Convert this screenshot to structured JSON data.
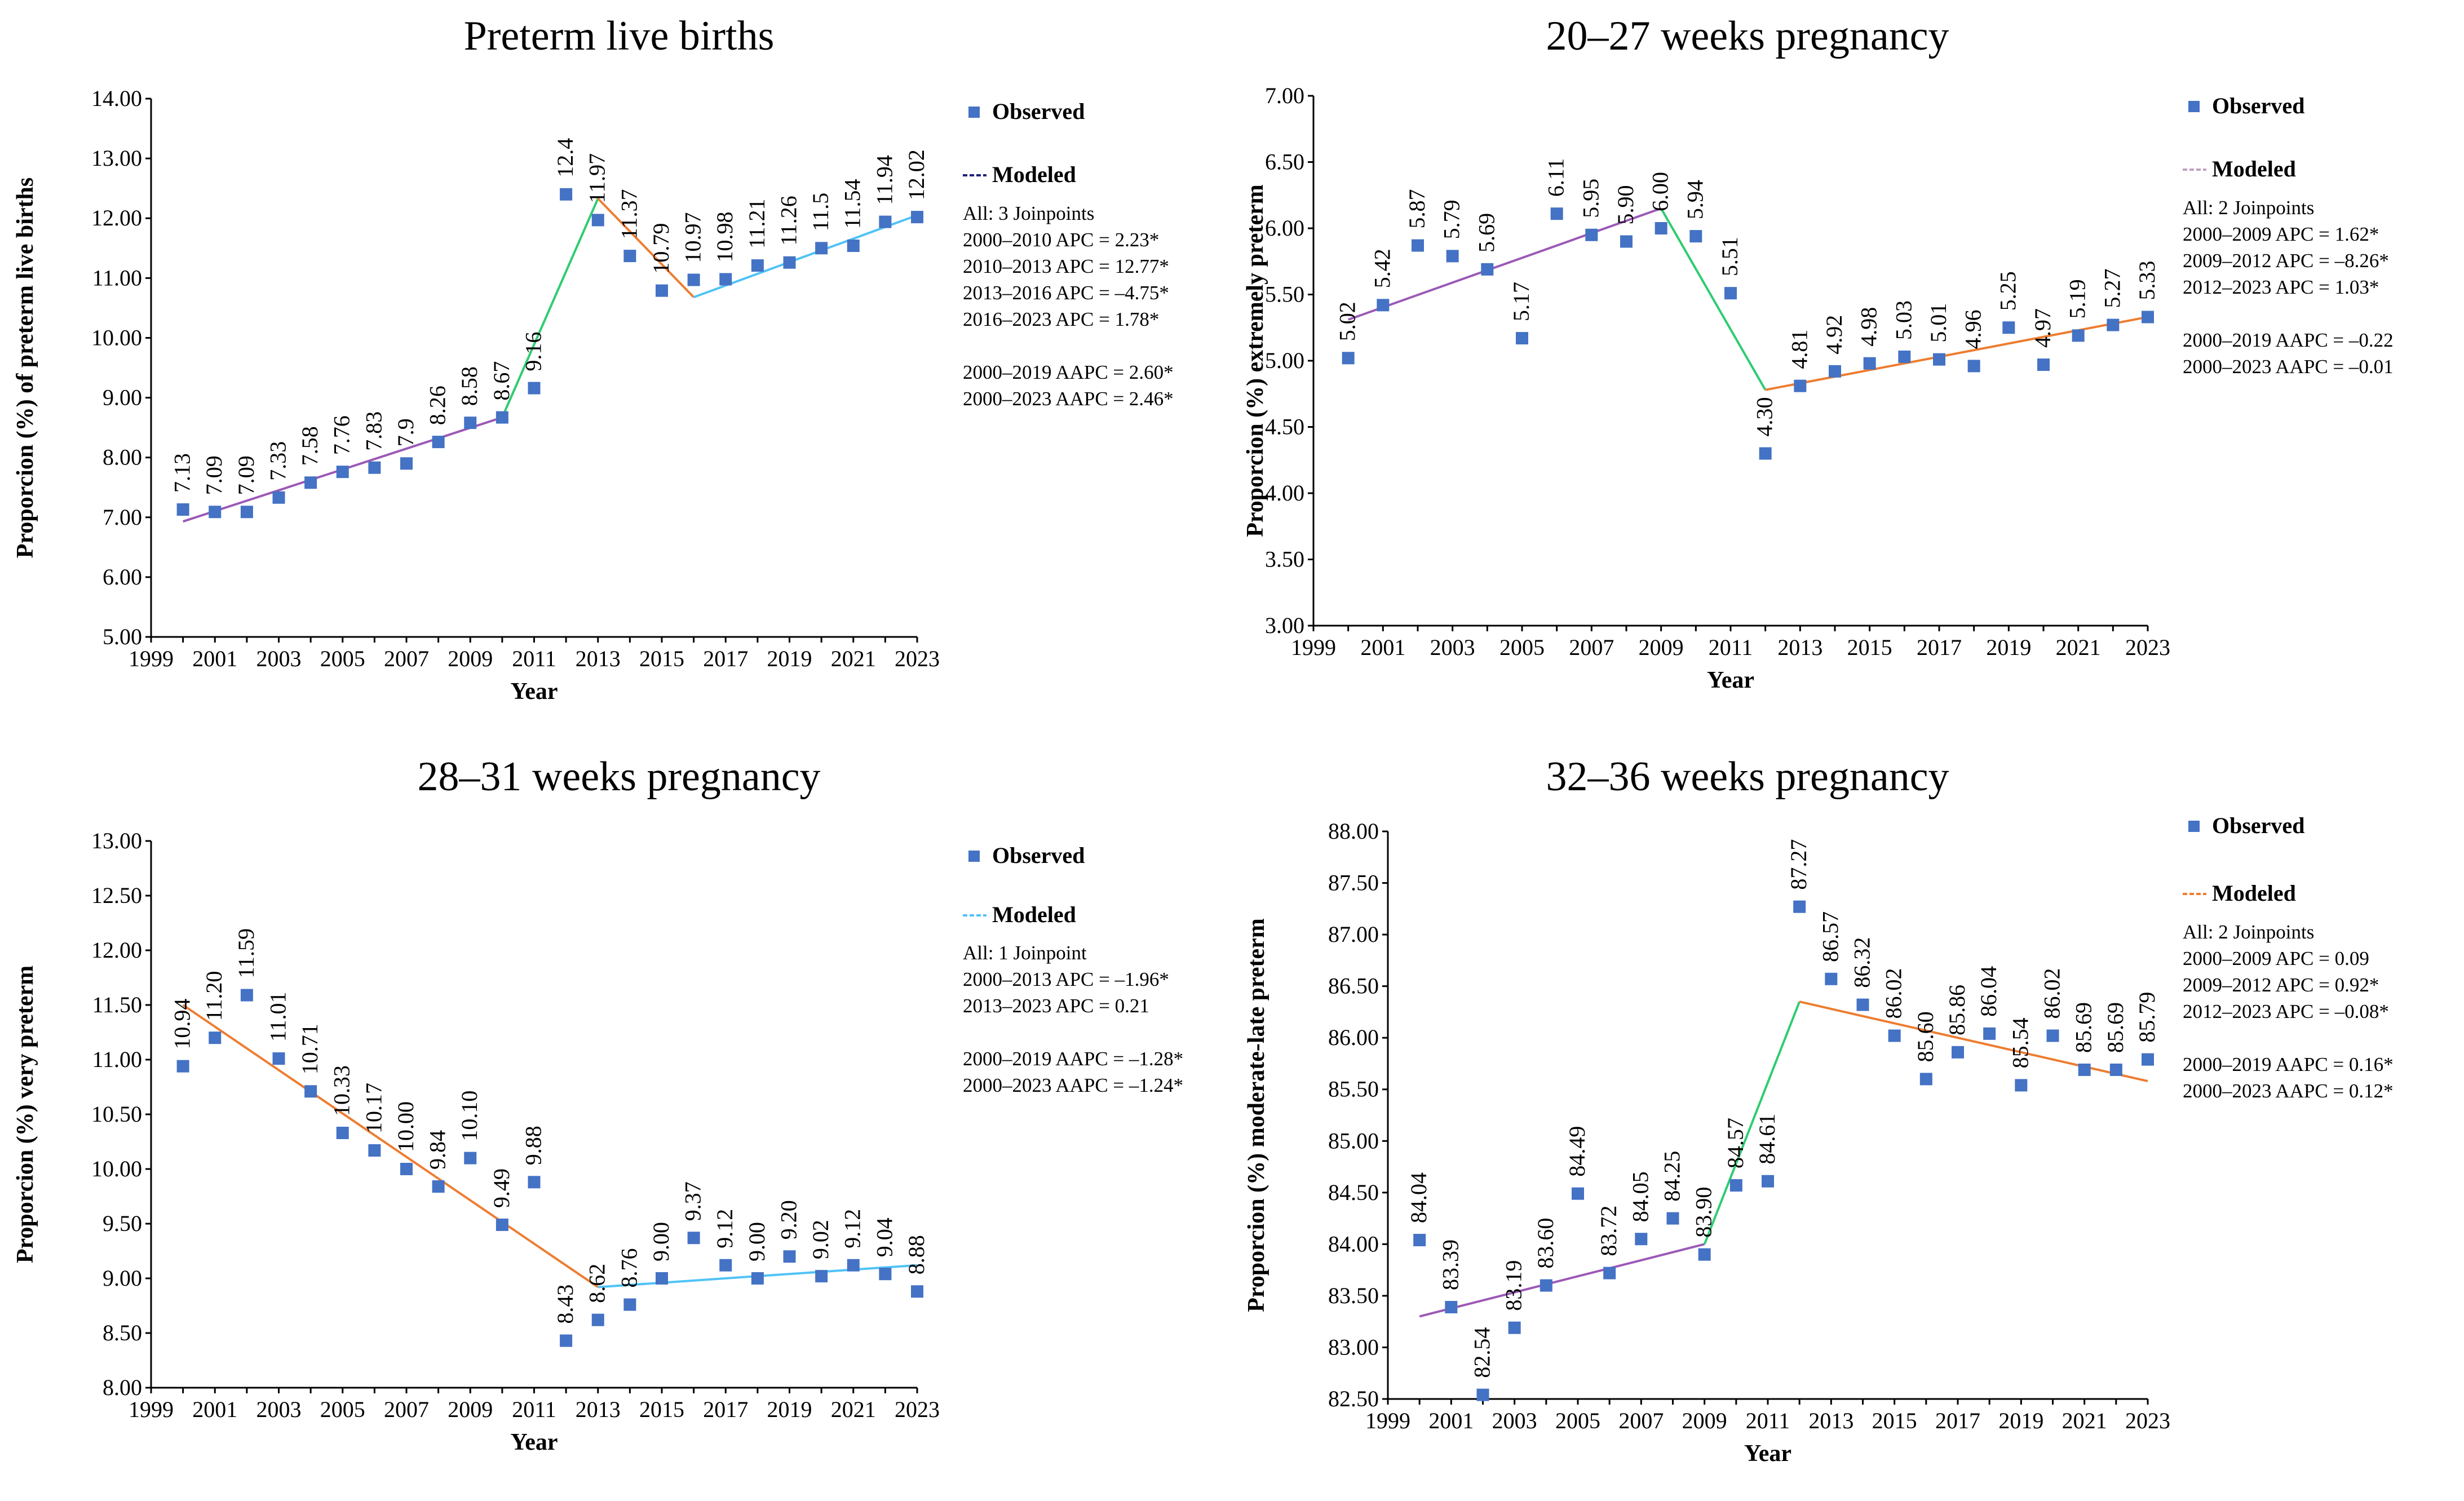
{
  "chart_data": [
    {
      "type": "scatter",
      "title": "Preterm live births",
      "xlabel": "Year",
      "ylabel": "Proporcion (%) of preterm live births",
      "xlim": [
        1999,
        2023
      ],
      "ylim": [
        5.0,
        14.0
      ],
      "x_ticks": [
        "1999",
        "2001",
        "2003",
        "2005",
        "2007",
        "2009",
        "2011",
        "2013",
        "2015",
        "2017",
        "2019",
        "2021",
        "2023"
      ],
      "y_ticks": [
        "5.00",
        "6.00",
        "7.00",
        "8.00",
        "9.00",
        "10.00",
        "11.00",
        "12.00",
        "13.00",
        "14.00"
      ],
      "observed": {
        "years": [
          2000,
          2001,
          2002,
          2003,
          2004,
          2005,
          2006,
          2007,
          2008,
          2009,
          2010,
          2011,
          2012,
          2013,
          2014,
          2015,
          2016,
          2017,
          2018,
          2019,
          2020,
          2021,
          2022,
          2023
        ],
        "values": [
          7.13,
          7.09,
          7.09,
          7.33,
          7.58,
          7.76,
          7.83,
          7.9,
          8.26,
          8.58,
          8.67,
          9.16,
          12.4,
          11.97,
          11.37,
          10.79,
          10.97,
          10.98,
          11.21,
          11.26,
          11.5,
          11.54,
          11.94,
          12.02
        ],
        "labels": [
          "7.13",
          "7.09",
          "7.09",
          "7.33",
          "7.58",
          "7.76",
          "7.83",
          "7.9",
          "8.26",
          "8.58",
          "8.67",
          "9.16",
          "12.4",
          "11.97",
          "11.37",
          "10.79",
          "10.97",
          "10.98",
          "11.21",
          "11.26",
          "11.5",
          "11.54",
          "11.94",
          "12.02"
        ]
      },
      "modeled": [
        {
          "x": [
            2000,
            2010
          ],
          "y": [
            6.93,
            8.67
          ],
          "color": "#9B59B6"
        },
        {
          "x": [
            2010,
            2013
          ],
          "y": [
            8.67,
            12.33
          ],
          "color": "#2ECC71"
        },
        {
          "x": [
            2013,
            2016
          ],
          "y": [
            12.33,
            10.68
          ],
          "color": "#ED7D31"
        },
        {
          "x": [
            2016,
            2023
          ],
          "y": [
            10.68,
            12.05
          ],
          "color": "#4FC3F7"
        }
      ],
      "legend": {
        "observed": "Observed",
        "modeled": "Modeled",
        "modeled_color": "#1F1F7A"
      },
      "annotations": [
        "All: 3 Joinpoints",
        "2000–2010 APC = 2.23*",
        "2010–2013 APC = 12.77*",
        "2013–2016 APC = –4.75*",
        "2016–2023 APC = 1.78*",
        "",
        "2000–2019 AAPC = 2.60*",
        "2000–2023 AAPC = 2.46*"
      ]
    },
    {
      "type": "scatter",
      "title": "20–27 weeks pregnancy",
      "xlabel": "Year",
      "ylabel": "Proporcion (%) extremely preterm",
      "xlim": [
        1999,
        2023
      ],
      "ylim": [
        3.0,
        7.0
      ],
      "x_ticks": [
        "1999",
        "2001",
        "2003",
        "2005",
        "2007",
        "2009",
        "2011",
        "2013",
        "2015",
        "2017",
        "2019",
        "2021",
        "2023"
      ],
      "y_ticks": [
        "3.00",
        "3.50",
        "4.00",
        "4.50",
        "5.00",
        "5.50",
        "6.00",
        "6.50",
        "7.00"
      ],
      "observed": {
        "years": [
          2000,
          2001,
          2002,
          2003,
          2004,
          2005,
          2006,
          2007,
          2008,
          2009,
          2010,
          2011,
          2012,
          2013,
          2014,
          2015,
          2016,
          2017,
          2018,
          2019,
          2020,
          2021,
          2022,
          2023
        ],
        "values": [
          5.02,
          5.42,
          5.87,
          5.79,
          5.69,
          5.17,
          6.11,
          5.95,
          5.9,
          6.0,
          5.94,
          5.51,
          4.3,
          4.81,
          4.92,
          4.98,
          5.03,
          5.01,
          4.96,
          5.25,
          4.97,
          5.19,
          5.27,
          5.33
        ],
        "labels": [
          "5.02",
          "5.42",
          "5.87",
          "5.79",
          "5.69",
          "5.17",
          "6.11",
          "5.95",
          "5.90",
          "6.00",
          "5.94",
          "5.51",
          "4.30",
          "4.81",
          "4.92",
          "4.98",
          "5.03",
          "5.01",
          "4.96",
          "5.25",
          "4.97",
          "5.19",
          "5.27",
          "5.33"
        ]
      },
      "modeled": [
        {
          "x": [
            2000,
            2009
          ],
          "y": [
            5.31,
            6.15
          ],
          "color": "#9B59B6"
        },
        {
          "x": [
            2009,
            2012
          ],
          "y": [
            6.15,
            4.78
          ],
          "color": "#2ECC71"
        },
        {
          "x": [
            2012,
            2023
          ],
          "y": [
            4.78,
            5.33
          ],
          "color": "#ED7D31"
        }
      ],
      "legend": {
        "observed": "Observed",
        "modeled": "Modeled",
        "modeled_color": "#C0A0C0"
      },
      "annotations": [
        "All: 2 Joinpoints",
        "2000–2009 APC = 1.62*",
        "2009–2012 APC = –8.26*",
        "2012–2023 APC = 1.03*",
        "",
        "2000–2019 AAPC = –0.22",
        "2000–2023 AAPC = –0.01"
      ]
    },
    {
      "type": "scatter",
      "title": "28–31 weeks pregnancy",
      "xlabel": "Year",
      "ylabel": "Proporcion (%) very preterm",
      "xlim": [
        1999,
        2023
      ],
      "ylim": [
        8.0,
        13.0
      ],
      "x_ticks": [
        "1999",
        "2001",
        "2003",
        "2005",
        "2007",
        "2009",
        "2011",
        "2013",
        "2015",
        "2017",
        "2019",
        "2021",
        "2023"
      ],
      "y_ticks": [
        "8.00",
        "8.50",
        "9.00",
        "9.50",
        "10.00",
        "10.50",
        "11.00",
        "11.50",
        "12.00",
        "12.50",
        "13.00"
      ],
      "observed": {
        "years": [
          2000,
          2001,
          2002,
          2003,
          2004,
          2005,
          2006,
          2007,
          2008,
          2009,
          2010,
          2011,
          2012,
          2013,
          2014,
          2015,
          2016,
          2017,
          2018,
          2019,
          2020,
          2021,
          2022,
          2023
        ],
        "values": [
          10.94,
          11.2,
          11.59,
          11.01,
          10.71,
          10.33,
          10.17,
          10.0,
          9.84,
          10.1,
          9.49,
          9.88,
          8.43,
          8.62,
          8.76,
          9.0,
          9.37,
          9.12,
          9.0,
          9.2,
          9.02,
          9.12,
          9.04,
          8.88
        ],
        "labels": [
          "10.94",
          "11.20",
          "11.59",
          "11.01",
          "10.71",
          "10.33",
          "10.17",
          "10.00",
          "9.84",
          "10.10",
          "9.49",
          "9.88",
          "8.43",
          "8.62",
          "8.76",
          "9.00",
          "9.37",
          "9.12",
          "9.00",
          "9.20",
          "9.02",
          "9.12",
          "9.04",
          "8.88"
        ]
      },
      "modeled": [
        {
          "x": [
            2000,
            2013
          ],
          "y": [
            11.5,
            8.92
          ],
          "color": "#ED7D31"
        },
        {
          "x": [
            2013,
            2023
          ],
          "y": [
            8.92,
            9.12
          ],
          "color": "#4FC3F7"
        }
      ],
      "legend": {
        "observed": "Observed",
        "modeled": "Modeled",
        "modeled_color": "#4FC3F7"
      },
      "annotations": [
        "All: 1 Joinpoint",
        "2000–2013 APC = –1.96*",
        "2013–2023 APC = 0.21",
        "",
        "2000–2019 AAPC = –1.28*",
        "2000–2023 AAPC = –1.24*"
      ]
    },
    {
      "type": "scatter",
      "title": "32–36 weeks pregnancy",
      "xlabel": "Year",
      "ylabel": "Proporcion (%) moderate-late preterm",
      "xlim": [
        1999,
        2023
      ],
      "ylim": [
        82.5,
        88.0
      ],
      "x_ticks": [
        "1999",
        "2001",
        "2003",
        "2005",
        "2007",
        "2009",
        "2011",
        "2013",
        "2015",
        "2017",
        "2019",
        "2021",
        "2023"
      ],
      "y_ticks": [
        "82.50",
        "83.00",
        "83.50",
        "84.00",
        "84.50",
        "85.00",
        "85.50",
        "86.00",
        "86.50",
        "87.00",
        "87.50",
        "88.00"
      ],
      "observed": {
        "years": [
          2000,
          2001,
          2002,
          2003,
          2004,
          2005,
          2006,
          2007,
          2008,
          2009,
          2010,
          2011,
          2012,
          2013,
          2014,
          2015,
          2016,
          2017,
          2018,
          2019,
          2020,
          2021,
          2022,
          2023
        ],
        "values": [
          84.04,
          83.39,
          82.54,
          83.19,
          83.6,
          84.49,
          83.72,
          84.05,
          84.25,
          83.9,
          84.57,
          84.61,
          87.27,
          86.57,
          86.32,
          86.02,
          85.6,
          85.86,
          86.04,
          85.54,
          86.02,
          85.69,
          85.69,
          85.79
        ],
        "labels": [
          "84.04",
          "83.39",
          "82.54",
          "83.19",
          "83.60",
          "84.49",
          "83.72",
          "84.05",
          "84.25",
          "83.90",
          "84.57",
          "84.61",
          "87.27",
          "86.57",
          "86.32",
          "86.02",
          "85.60",
          "85.86",
          "86.04",
          "85.54",
          "86.02",
          "85.69",
          "85.69",
          "85.79"
        ]
      },
      "modeled": [
        {
          "x": [
            2000,
            2009
          ],
          "y": [
            83.3,
            84.0
          ],
          "color": "#9B59B6"
        },
        {
          "x": [
            2009,
            2012
          ],
          "y": [
            84.0,
            86.35
          ],
          "color": "#2ECC71"
        },
        {
          "x": [
            2012,
            2023
          ],
          "y": [
            86.35,
            85.58
          ],
          "color": "#ED7D31"
        }
      ],
      "legend": {
        "observed": "Observed",
        "modeled": "Modeled",
        "modeled_color": "#ED7D31"
      },
      "annotations": [
        "All: 2 Joinpoints",
        "2000–2009 APC = 0.09",
        "2009–2012 APC = 0.92*",
        "2012–2023 APC = –0.08*",
        "",
        "2000–2019 AAPC = 0.16*",
        "2000–2023 AAPC = 0.12*"
      ]
    }
  ],
  "colors": {
    "observed_marker": "#4472C4"
  }
}
